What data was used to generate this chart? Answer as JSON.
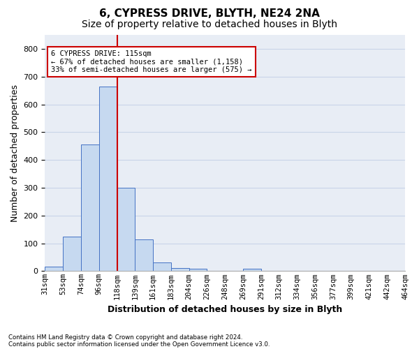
{
  "title1": "6, CYPRESS DRIVE, BLYTH, NE24 2NA",
  "title2": "Size of property relative to detached houses in Blyth",
  "xlabel": "Distribution of detached houses by size in Blyth",
  "ylabel": "Number of detached properties",
  "footnote1": "Contains HM Land Registry data © Crown copyright and database right 2024.",
  "footnote2": "Contains public sector information licensed under the Open Government Licence v3.0.",
  "bin_labels": [
    "31sqm",
    "53sqm",
    "74sqm",
    "96sqm",
    "118sqm",
    "139sqm",
    "161sqm",
    "183sqm",
    "204sqm",
    "226sqm",
    "248sqm",
    "269sqm",
    "291sqm",
    "312sqm",
    "334sqm",
    "356sqm",
    "377sqm",
    "399sqm",
    "421sqm",
    "442sqm",
    "464sqm"
  ],
  "bar_values": [
    15,
    125,
    455,
    665,
    300,
    115,
    30,
    12,
    8,
    0,
    0,
    8,
    0,
    0,
    0,
    0,
    0,
    0,
    0,
    0
  ],
  "bar_color": "#c6d9f0",
  "bar_edge_color": "#4472c4",
  "vline_x": 4,
  "vline_color": "#cc0000",
  "annotation_line1": "6 CYPRESS DRIVE: 115sqm",
  "annotation_line2": "← 67% of detached houses are smaller (1,158)",
  "annotation_line3": "33% of semi-detached houses are larger (575) →",
  "annotation_box_color": "white",
  "annotation_box_edge": "#cc0000",
  "ylim": [
    0,
    850
  ],
  "yticks": [
    0,
    100,
    200,
    300,
    400,
    500,
    600,
    700,
    800
  ],
  "grid_color": "#c8d4e8",
  "background_color": "#e8edf5",
  "title1_fontsize": 11,
  "title2_fontsize": 10,
  "xlabel_fontsize": 9,
  "ylabel_fontsize": 9,
  "tick_fontsize": 7.5
}
